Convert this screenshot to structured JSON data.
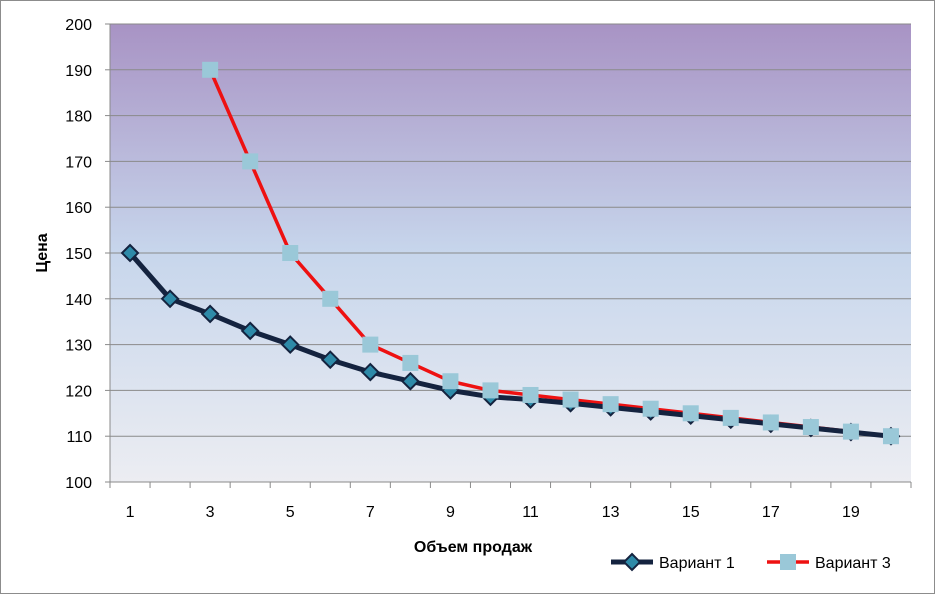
{
  "chart_data": {
    "type": "line",
    "title": "",
    "xlabel": "Объем продаж",
    "ylabel": "Цена",
    "x": [
      1,
      2,
      3,
      4,
      5,
      6,
      7,
      8,
      9,
      10,
      11,
      12,
      13,
      14,
      15,
      16,
      17,
      18,
      19,
      20
    ],
    "x_tick_labels": [
      "1",
      "3",
      "5",
      "7",
      "9",
      "11",
      "13",
      "15",
      "17",
      "19"
    ],
    "ylim": [
      100,
      200
    ],
    "y_ticks": [
      100,
      110,
      120,
      130,
      140,
      150,
      160,
      170,
      180,
      190,
      200
    ],
    "grid": true,
    "legend_position": "bottom-right",
    "background_gradient": [
      "#a893c4",
      "#c7d6ec",
      "#ecedf2"
    ],
    "series": [
      {
        "name": "Вариант 1",
        "color": "#14233f",
        "marker": "diamond",
        "marker_color": "#2e8aa8",
        "values": [
          150,
          140,
          136.7,
          133,
          130,
          126.7,
          124,
          122,
          120,
          118.6,
          118,
          117.2,
          116.3,
          115.4,
          114.5,
          113.6,
          112.7,
          111.8,
          110.9,
          110
        ]
      },
      {
        "name": "Вариант 3",
        "color": "#ee1111",
        "marker": "square",
        "marker_color": "#9ac8d8",
        "values": [
          null,
          null,
          190,
          170,
          150,
          140,
          130,
          126,
          122,
          120,
          119,
          118,
          117,
          116,
          115,
          114,
          113,
          112,
          111,
          110
        ]
      }
    ]
  }
}
